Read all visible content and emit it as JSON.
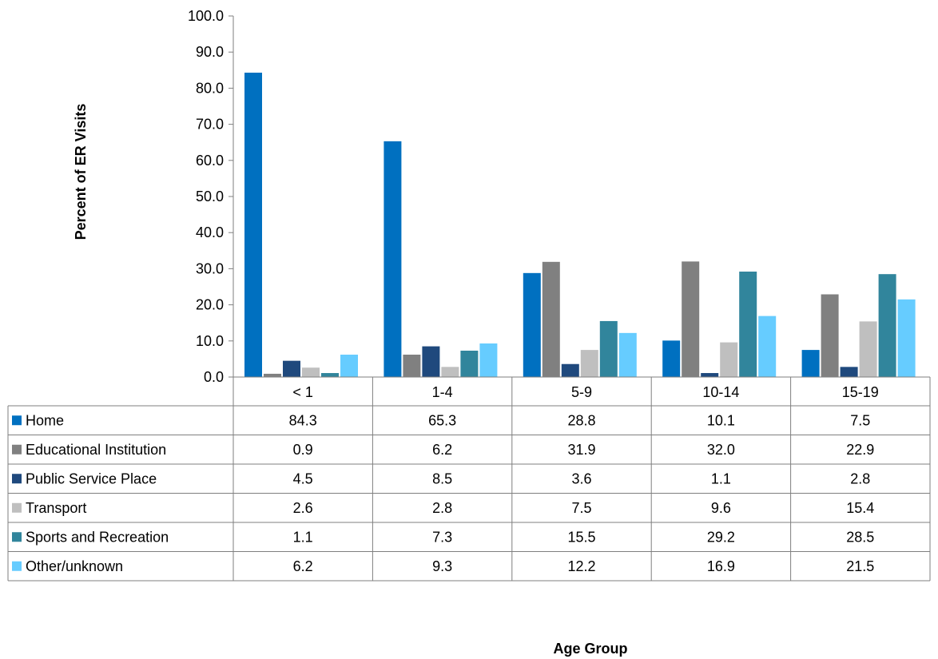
{
  "chart_data": {
    "type": "bar",
    "xlabel": "Age Group",
    "ylabel": "Percent of ER Visits",
    "ylim": [
      0,
      100
    ],
    "yticks": [
      "0.0",
      "10.0",
      "20.0",
      "30.0",
      "40.0",
      "50.0",
      "60.0",
      "70.0",
      "80.0",
      "90.0",
      "100.0"
    ],
    "legend_placement": "data-table",
    "categories": [
      "< 1",
      "1-4",
      "5-9",
      "10-14",
      "15-19"
    ],
    "series": [
      {
        "name": "Home",
        "color": "#0070C0",
        "values": [
          84.3,
          65.3,
          28.8,
          10.1,
          7.5
        ],
        "labels": [
          "84.3",
          "65.3",
          "28.8",
          "10.1",
          "7.5"
        ]
      },
      {
        "name": "Educational Institution",
        "color": "#808080",
        "values": [
          0.9,
          6.2,
          31.9,
          32.0,
          22.9
        ],
        "labels": [
          "0.9",
          "6.2",
          "31.9",
          "32.0",
          "22.9"
        ]
      },
      {
        "name": "Public Service Place",
        "color": "#1F497D",
        "values": [
          4.5,
          8.5,
          3.6,
          1.1,
          2.8
        ],
        "labels": [
          "4.5",
          "8.5",
          "3.6",
          "1.1",
          "2.8"
        ]
      },
      {
        "name": "Transport",
        "color": "#BFBFBF",
        "values": [
          2.6,
          2.8,
          7.5,
          9.6,
          15.4
        ],
        "labels": [
          "2.6",
          "2.8",
          "7.5",
          "9.6",
          "15.4"
        ]
      },
      {
        "name": "Sports and Recreation",
        "color": "#31859C",
        "values": [
          1.1,
          7.3,
          15.5,
          29.2,
          28.5
        ],
        "labels": [
          "1.1",
          "7.3",
          "15.5",
          "29.2",
          "28.5"
        ]
      },
      {
        "name": "Other/unknown",
        "color": "#66CCFF",
        "values": [
          6.2,
          9.3,
          12.2,
          16.9,
          21.5
        ],
        "labels": [
          "6.2",
          "9.3",
          "12.2",
          "16.9",
          "21.5"
        ]
      }
    ]
  }
}
